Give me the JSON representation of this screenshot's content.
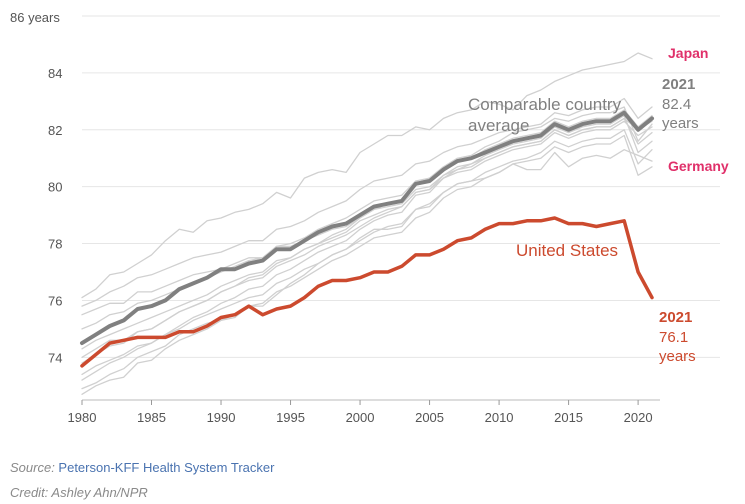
{
  "chart_data": {
    "type": "line",
    "title": "",
    "xlabel": "",
    "ylabel": "",
    "y_top_label": "86 years",
    "xlim": [
      1980,
      2021
    ],
    "ylim": [
      72.5,
      86
    ],
    "x_ticks": [
      "1980",
      "1985",
      "1990",
      "1995",
      "2000",
      "2005",
      "2010",
      "2015",
      "2020"
    ],
    "y_ticks": [
      "74",
      "76",
      "78",
      "80",
      "82",
      "84"
    ],
    "grid": true,
    "x": [
      1980,
      1981,
      1982,
      1983,
      1984,
      1985,
      1986,
      1987,
      1988,
      1989,
      1990,
      1991,
      1992,
      1993,
      1994,
      1995,
      1996,
      1997,
      1998,
      1999,
      2000,
      2001,
      2002,
      2003,
      2004,
      2005,
      2006,
      2007,
      2008,
      2009,
      2010,
      2011,
      2012,
      2013,
      2014,
      2015,
      2016,
      2017,
      2018,
      2019,
      2020,
      2021
    ],
    "series": [
      {
        "name": "United States",
        "color": "#cc4a2e",
        "width": 3.5,
        "values": [
          73.7,
          74.1,
          74.5,
          74.6,
          74.7,
          74.7,
          74.7,
          74.9,
          74.9,
          75.1,
          75.4,
          75.5,
          75.8,
          75.5,
          75.7,
          75.8,
          76.1,
          76.5,
          76.7,
          76.7,
          76.8,
          77.0,
          77.0,
          77.2,
          77.6,
          77.6,
          77.8,
          78.1,
          78.2,
          78.5,
          78.7,
          78.7,
          78.8,
          78.8,
          78.9,
          78.7,
          78.7,
          78.6,
          78.7,
          78.8,
          77.0,
          76.1
        ]
      },
      {
        "name": "Comparable country average",
        "color": "#808080",
        "width": 4,
        "values": [
          74.5,
          74.8,
          75.1,
          75.3,
          75.7,
          75.8,
          76.0,
          76.4,
          76.6,
          76.8,
          77.1,
          77.1,
          77.3,
          77.4,
          77.8,
          77.8,
          78.1,
          78.4,
          78.6,
          78.7,
          79.0,
          79.3,
          79.4,
          79.5,
          80.1,
          80.2,
          80.6,
          80.9,
          81.0,
          81.2,
          81.4,
          81.6,
          81.7,
          81.8,
          82.2,
          82.0,
          82.2,
          82.3,
          82.3,
          82.6,
          82.0,
          82.4
        ]
      },
      {
        "name": "Japan",
        "color": "#d0d0d0",
        "width": 1.3,
        "values": [
          76.1,
          76.4,
          76.9,
          77.0,
          77.3,
          77.6,
          78.1,
          78.5,
          78.4,
          78.8,
          78.9,
          79.1,
          79.2,
          79.4,
          79.8,
          79.6,
          80.3,
          80.5,
          80.6,
          80.5,
          81.2,
          81.5,
          81.8,
          81.8,
          82.1,
          82.0,
          82.4,
          82.6,
          82.7,
          83.0,
          82.9,
          82.7,
          83.2,
          83.4,
          83.7,
          83.9,
          84.1,
          84.2,
          84.3,
          84.4,
          84.7,
          84.5
        ]
      },
      {
        "name": "Germany",
        "color": "#d0d0d0",
        "width": 1.3,
        "values": [
          72.9,
          73.1,
          73.4,
          73.6,
          74.0,
          74.2,
          74.4,
          74.8,
          75.0,
          75.2,
          75.3,
          75.4,
          75.8,
          75.8,
          76.2,
          76.6,
          76.9,
          77.3,
          77.6,
          77.8,
          78.2,
          78.5,
          78.5,
          78.6,
          79.2,
          79.3,
          79.8,
          80.1,
          80.2,
          80.3,
          80.5,
          80.8,
          80.6,
          80.6,
          81.2,
          80.7,
          81.0,
          81.1,
          81.0,
          81.3,
          81.1,
          80.9
        ]
      },
      {
        "name": "",
        "color": "#d0d0d0",
        "width": 1.3,
        "values": [
          75.8,
          76.0,
          76.3,
          76.5,
          76.8,
          76.9,
          77.1,
          77.3,
          77.5,
          77.6,
          77.7,
          77.9,
          78.1,
          78.1,
          78.5,
          78.6,
          78.8,
          79.1,
          79.3,
          79.5,
          79.9,
          80.2,
          80.3,
          80.4,
          80.8,
          80.9,
          81.2,
          81.4,
          81.5,
          81.7,
          81.9,
          82.0,
          82.1,
          82.2,
          82.6,
          82.5,
          82.7,
          82.8,
          82.8,
          83.1,
          82.4,
          82.8
        ]
      },
      {
        "name": "",
        "color": "#d0d0d0",
        "width": 1.3,
        "values": [
          74.0,
          74.3,
          74.6,
          74.6,
          74.9,
          75.0,
          75.3,
          75.6,
          75.8,
          76.0,
          76.3,
          76.5,
          76.8,
          76.9,
          77.3,
          77.5,
          77.8,
          78.0,
          78.3,
          78.5,
          78.9,
          79.2,
          79.4,
          79.5,
          80.1,
          80.3,
          80.7,
          81.0,
          81.1,
          81.4,
          81.6,
          81.9,
          82.0,
          82.1,
          82.4,
          82.3,
          82.5,
          82.6,
          82.6,
          82.8,
          81.6,
          82.2
        ]
      },
      {
        "name": "",
        "color": "#d0d0d0",
        "width": 1.3,
        "values": [
          75.5,
          75.7,
          75.9,
          75.9,
          76.3,
          76.3,
          76.5,
          76.7,
          76.9,
          77.0,
          77.1,
          77.3,
          77.5,
          77.5,
          77.9,
          77.9,
          78.1,
          78.3,
          78.5,
          78.6,
          78.9,
          79.2,
          79.3,
          79.4,
          79.9,
          80.0,
          80.4,
          80.6,
          80.8,
          81.0,
          81.2,
          81.4,
          81.5,
          81.6,
          82.0,
          81.8,
          82.0,
          82.1,
          82.1,
          82.4,
          81.5,
          81.9
        ]
      },
      {
        "name": "",
        "color": "#d0d0d0",
        "width": 1.3,
        "values": [
          73.2,
          73.5,
          73.8,
          74.0,
          74.3,
          74.5,
          74.8,
          75.1,
          75.4,
          75.6,
          75.9,
          76.1,
          76.4,
          76.5,
          76.9,
          77.1,
          77.4,
          77.7,
          77.9,
          78.1,
          78.5,
          78.8,
          79.0,
          79.1,
          79.7,
          79.8,
          80.3,
          80.6,
          80.7,
          81.0,
          81.2,
          81.4,
          81.5,
          81.6,
          82.0,
          81.8,
          82.0,
          82.1,
          82.1,
          82.4,
          82.0,
          82.3
        ]
      },
      {
        "name": "",
        "color": "#d0d0d0",
        "width": 1.3,
        "values": [
          74.3,
          74.6,
          74.8,
          75.0,
          75.2,
          75.4,
          75.6,
          75.8,
          76.0,
          76.2,
          76.5,
          76.7,
          76.9,
          77.0,
          77.4,
          77.5,
          77.8,
          78.0,
          78.2,
          78.4,
          78.8,
          79.0,
          79.2,
          79.3,
          79.8,
          79.9,
          80.3,
          80.5,
          80.6,
          80.9,
          81.1,
          81.3,
          81.4,
          81.5,
          81.9,
          81.7,
          81.9,
          82.0,
          82.0,
          82.3,
          81.8,
          82.1
        ]
      },
      {
        "name": "",
        "color": "#d0d0d0",
        "width": 1.3,
        "values": [
          73.8,
          74.1,
          74.4,
          74.5,
          74.9,
          75.0,
          75.3,
          75.6,
          75.8,
          76.0,
          76.3,
          76.5,
          76.7,
          76.8,
          77.2,
          77.4,
          77.6,
          77.9,
          78.1,
          78.3,
          78.6,
          78.9,
          79.1,
          79.3,
          79.8,
          79.9,
          80.4,
          80.7,
          80.8,
          81.1,
          81.3,
          81.5,
          81.6,
          81.7,
          82.1,
          81.9,
          82.1,
          82.2,
          82.2,
          82.5,
          81.2,
          81.6
        ]
      },
      {
        "name": "",
        "color": "#d0d0d0",
        "width": 1.3,
        "values": [
          75.0,
          75.2,
          75.5,
          75.6,
          75.9,
          76.0,
          76.2,
          76.4,
          76.6,
          76.8,
          77.0,
          77.2,
          77.4,
          77.5,
          77.9,
          78.0,
          78.2,
          78.5,
          78.7,
          78.9,
          79.2,
          79.5,
          79.6,
          79.7,
          80.2,
          80.3,
          80.7,
          80.9,
          81.0,
          81.3,
          81.5,
          81.7,
          81.8,
          81.9,
          82.3,
          82.1,
          82.3,
          82.4,
          82.4,
          82.7,
          82.1,
          82.5
        ]
      },
      {
        "name": "",
        "color": "#d0d0d0",
        "width": 1.3,
        "values": [
          73.4,
          73.7,
          73.9,
          74.1,
          74.4,
          74.5,
          74.8,
          75.0,
          75.3,
          75.5,
          75.7,
          75.9,
          76.1,
          76.2,
          76.6,
          76.8,
          77.1,
          77.3,
          77.6,
          77.8,
          78.1,
          78.4,
          78.6,
          78.7,
          79.2,
          79.4,
          79.8,
          80.1,
          80.2,
          80.5,
          80.7,
          80.9,
          81.0,
          81.2,
          81.6,
          81.4,
          81.6,
          81.7,
          81.7,
          82.0,
          80.8,
          81.3
        ]
      },
      {
        "name": "",
        "color": "#d0d0d0",
        "width": 1.3,
        "values": [
          72.7,
          73.0,
          73.2,
          73.3,
          73.8,
          73.9,
          74.3,
          74.6,
          74.8,
          75.0,
          75.3,
          75.5,
          75.8,
          75.9,
          76.3,
          76.5,
          76.8,
          77.1,
          77.4,
          77.6,
          77.9,
          78.2,
          78.3,
          78.4,
          78.9,
          79.1,
          79.6,
          79.9,
          80.0,
          80.3,
          80.5,
          80.8,
          80.9,
          81.0,
          81.4,
          81.2,
          81.4,
          81.5,
          81.5,
          81.8,
          80.4,
          80.7
        ]
      }
    ],
    "annotations": {
      "japan": {
        "text": "Japan",
        "color": "#e0306a"
      },
      "germany": {
        "text": "Germany",
        "color": "#e0306a"
      },
      "avg_label": [
        "Comparable country",
        "average"
      ],
      "avg_year": "2021",
      "avg_value": [
        "82.4",
        "years"
      ],
      "us_label": "United States",
      "us_year": "2021",
      "us_value": [
        "76.1",
        "years"
      ]
    }
  },
  "footer": {
    "source_prefix": "Source: ",
    "source_name": "Peterson-KFF Health System Tracker",
    "credit": "Credit: Ashley Ahn/NPR"
  }
}
